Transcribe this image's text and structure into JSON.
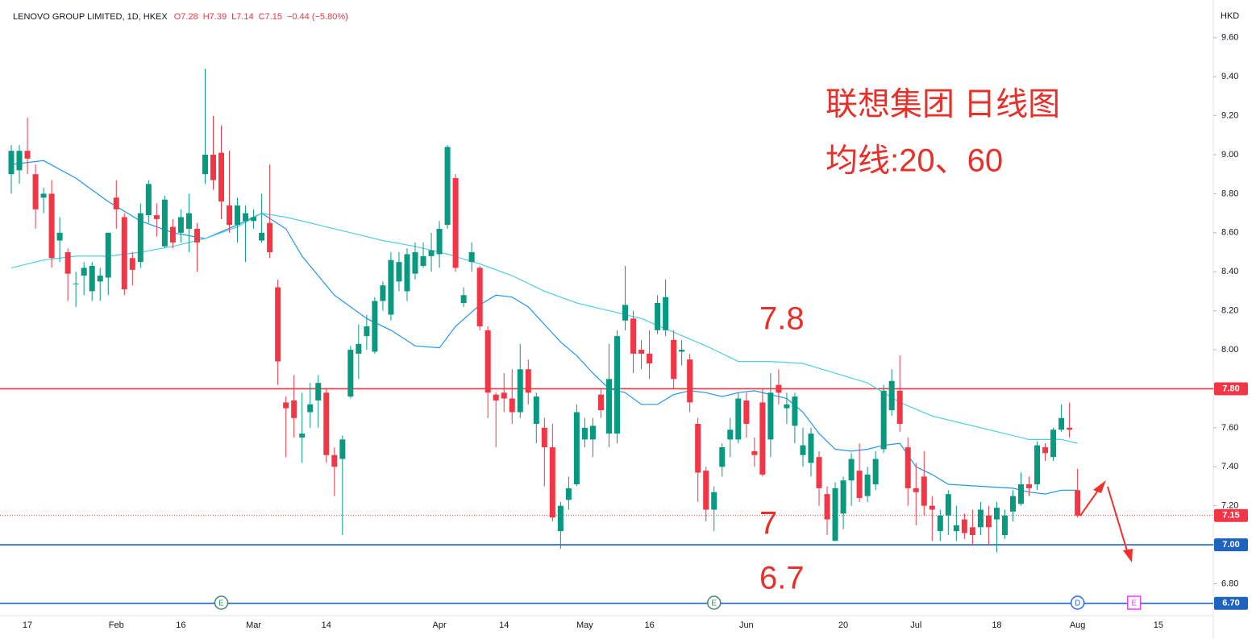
{
  "chart_data": {
    "type": "candlestick",
    "header": {
      "symbol": "LENOVO GROUP LIMITED, 1D, HKEX",
      "ohlc": [
        "O7.28",
        "H7.39",
        "L7.14",
        "C7.15",
        "−0.44 (−5.80%)"
      ]
    },
    "currency": "HKD",
    "title": "联想集团 日线图",
    "subtitle": "均线:20、60",
    "annotations": [
      "7.8",
      "7",
      "6.7"
    ],
    "up_color": "#089981",
    "down_color": "#f23645",
    "categories": [
      null,
      null,
      "17",
      null,
      null,
      null,
      null,
      null,
      null,
      null,
      null,
      null,
      null,
      "Feb",
      null,
      null,
      null,
      null,
      null,
      null,
      null,
      "16",
      null,
      null,
      null,
      null,
      null,
      null,
      null,
      null,
      "Mar",
      null,
      null,
      null,
      null,
      null,
      null,
      null,
      null,
      "14",
      null,
      null,
      null,
      null,
      null,
      null,
      null,
      null,
      null,
      null,
      null,
      null,
      null,
      "Apr",
      null,
      null,
      null,
      null,
      null,
      null,
      null,
      "14",
      null,
      null,
      null,
      null,
      null,
      null,
      null,
      null,
      null,
      "May",
      null,
      null,
      null,
      null,
      null,
      null,
      null,
      "16",
      null,
      null,
      null,
      null,
      null,
      null,
      null,
      null,
      null,
      null,
      null,
      "Jun",
      null,
      null,
      null,
      null,
      null,
      null,
      null,
      null,
      null,
      null,
      null,
      "20",
      null,
      null,
      null,
      null,
      null,
      null,
      null,
      null,
      "Jul",
      null,
      null,
      null,
      null,
      null,
      null,
      null,
      null,
      null,
      "18",
      null,
      null,
      null,
      null,
      null,
      null,
      null,
      null,
      null,
      "Aug",
      null,
      null,
      null,
      null,
      null,
      null,
      null,
      null,
      null,
      "15"
    ],
    "open": [
      8.9,
      8.92,
      9.02,
      8.9,
      8.78,
      8.8,
      8.56,
      8.5,
      8.34,
      8.38,
      8.3,
      8.35,
      8.37,
      8.78,
      8.68,
      8.47,
      8.45,
      8.69,
      8.69,
      8.53,
      8.63,
      8.6,
      8.62,
      8.62,
      8.9,
      9.0,
      9.01,
      8.74,
      8.64,
      8.66,
      8.66,
      8.56,
      8.65,
      8.32,
      7.73,
      7.74,
      7.55,
      7.68,
      7.74,
      7.78,
      7.46,
      7.44,
      7.76,
      7.98,
      8.07,
      7.99,
      8.25,
      8.18,
      8.35,
      8.3,
      8.39,
      8.43,
      8.48,
      8.49,
      8.64,
      8.88,
      8.24,
      8.45,
      8.42,
      8.1,
      7.77,
      7.78,
      7.75,
      7.68,
      7.9,
      7.62,
      7.6,
      7.5,
      7.07,
      7.23,
      7.31,
      7.54,
      7.54,
      7.77,
      7.57,
      7.57,
      8.15,
      8.16,
      8.0,
      7.98,
      8.1,
      8.1,
      8.05,
      7.99,
      7.95,
      7.62,
      7.38,
      7.18,
      7.4,
      7.54,
      7.54,
      7.74,
      7.48,
      7.73,
      7.54,
      7.82,
      7.7,
      7.61,
      7.46,
      7.42,
      7.45,
      7.26,
      7.02,
      7.16,
      7.33,
      7.38,
      7.25,
      7.31,
      7.49,
      7.69,
      7.79,
      7.5,
      7.29,
      7.35,
      7.2,
      7.07,
      7.15,
      7.07,
      7.13,
      7.09,
      7.09,
      7.15,
      7.13,
      7.05,
      7.17,
      7.21,
      7.31,
      7.31,
      7.5,
      7.45,
      7.59,
      7.6,
      7.28,
      null,
      null,
      null,
      null,
      null,
      null,
      null,
      null,
      null,
      null
    ],
    "high": [
      9.05,
      9.05,
      9.19,
      8.95,
      8.83,
      8.87,
      8.68,
      8.52,
      8.4,
      8.45,
      8.45,
      8.42,
      8.6,
      8.87,
      8.7,
      8.5,
      8.75,
      8.87,
      8.75,
      8.79,
      8.67,
      8.72,
      8.8,
      8.65,
      9.44,
      9.2,
      9.15,
      9.02,
      8.78,
      8.74,
      8.72,
      8.8,
      8.95,
      8.36,
      7.76,
      7.87,
      7.78,
      7.83,
      7.87,
      7.8,
      7.5,
      7.56,
      8.02,
      8.13,
      8.18,
      8.27,
      8.35,
      8.5,
      8.5,
      8.52,
      8.55,
      8.55,
      8.6,
      8.66,
      9.05,
      8.9,
      8.32,
      8.55,
      8.43,
      8.12,
      7.78,
      7.88,
      7.9,
      8.03,
      7.95,
      7.78,
      7.65,
      7.62,
      7.22,
      7.35,
      7.72,
      7.65,
      7.65,
      7.8,
      8.03,
      8.1,
      8.43,
      8.2,
      8.05,
      8.1,
      8.28,
      8.36,
      8.1,
      8.05,
      7.98,
      7.65,
      7.4,
      7.3,
      7.52,
      7.65,
      7.78,
      7.78,
      7.55,
      7.8,
      7.88,
      7.9,
      7.78,
      7.78,
      7.6,
      7.6,
      7.48,
      7.3,
      7.32,
      7.35,
      7.47,
      7.52,
      7.4,
      7.48,
      7.82,
      7.9,
      7.97,
      7.55,
      7.42,
      7.48,
      7.25,
      7.18,
      7.28,
      7.2,
      7.16,
      7.18,
      7.22,
      7.2,
      7.22,
      7.18,
      7.28,
      7.37,
      7.35,
      7.53,
      7.52,
      7.6,
      7.72,
      7.73,
      7.39,
      null,
      null,
      null,
      null,
      null,
      null,
      null,
      null,
      null,
      null
    ],
    "low": [
      8.8,
      8.85,
      8.9,
      8.62,
      8.7,
      8.42,
      8.45,
      8.25,
      8.22,
      8.28,
      8.25,
      8.25,
      8.28,
      8.62,
      8.28,
      8.33,
      8.42,
      8.65,
      8.58,
      8.52,
      8.52,
      8.55,
      8.5,
      8.4,
      8.85,
      8.82,
      8.67,
      8.6,
      8.55,
      8.45,
      8.62,
      8.55,
      8.47,
      7.82,
      7.45,
      7.55,
      7.42,
      7.6,
      7.6,
      7.42,
      7.25,
      7.05,
      7.75,
      7.85,
      8.0,
      7.98,
      8.2,
      8.15,
      8.3,
      8.25,
      8.36,
      8.42,
      8.4,
      8.42,
      8.62,
      8.4,
      8.22,
      8.4,
      8.1,
      7.65,
      7.5,
      7.68,
      7.62,
      7.65,
      7.72,
      7.52,
      7.3,
      7.12,
      6.98,
      7.18,
      7.3,
      7.5,
      7.45,
      7.65,
      7.5,
      7.52,
      8.1,
      7.88,
      7.9,
      7.85,
      8.08,
      8.07,
      7.8,
      7.92,
      7.68,
      7.22,
      7.12,
      7.07,
      7.35,
      7.45,
      7.52,
      7.55,
      7.4,
      7.35,
      7.45,
      7.72,
      7.62,
      7.52,
      7.4,
      7.35,
      7.2,
      7.05,
      7.02,
      7.08,
      7.2,
      7.22,
      7.22,
      7.28,
      7.47,
      7.66,
      7.58,
      7.2,
      7.1,
      7.15,
      7.02,
      7.02,
      7.05,
      7.02,
      7.03,
      7.0,
      7.05,
      7.0,
      6.96,
      7.03,
      7.12,
      7.2,
      7.25,
      7.28,
      7.43,
      7.43,
      7.58,
      7.55,
      7.14,
      null,
      null,
      null,
      null,
      null,
      null,
      null,
      null,
      null,
      null
    ],
    "close": [
      9.02,
      9.02,
      8.98,
      8.72,
      8.8,
      8.47,
      8.6,
      8.39,
      8.34,
      8.42,
      8.43,
      8.38,
      8.6,
      8.72,
      8.31,
      8.41,
      8.7,
      8.85,
      8.67,
      8.77,
      8.55,
      8.68,
      8.7,
      8.55,
      9.0,
      8.87,
      8.76,
      8.64,
      8.74,
      8.7,
      8.68,
      8.6,
      8.5,
      7.94,
      7.7,
      7.65,
      7.57,
      7.72,
      7.83,
      7.46,
      7.4,
      7.54,
      8.0,
      8.03,
      8.12,
      8.25,
      8.33,
      8.46,
      8.45,
      8.49,
      8.5,
      8.48,
      8.51,
      8.62,
      9.04,
      8.42,
      8.28,
      8.5,
      8.12,
      7.78,
      7.74,
      7.75,
      7.68,
      7.9,
      7.78,
      7.76,
      7.5,
      7.14,
      7.2,
      7.29,
      7.68,
      7.6,
      7.61,
      7.69,
      7.85,
      8.07,
      8.23,
      7.98,
      7.98,
      7.93,
      8.24,
      8.27,
      7.85,
      8.0,
      7.73,
      7.37,
      7.18,
      7.27,
      7.5,
      7.59,
      7.75,
      7.62,
      7.46,
      7.36,
      7.78,
      7.78,
      7.72,
      7.76,
      7.51,
      7.57,
      7.29,
      7.13,
      7.29,
      7.33,
      7.44,
      7.24,
      7.36,
      7.44,
      7.79,
      7.84,
      7.62,
      7.29,
      7.27,
      7.2,
      7.18,
      7.15,
      7.26,
      7.1,
      7.06,
      7.05,
      7.18,
      7.09,
      7.19,
      7.15,
      7.25,
      7.31,
      7.29,
      7.51,
      7.47,
      7.59,
      7.65,
      7.59,
      7.15,
      null,
      null,
      null,
      null,
      null,
      null,
      null,
      null,
      null,
      null
    ],
    "lines": [
      {
        "color": "#2196f3",
        "x": [
          0,
          4,
          8,
          12,
          16,
          20,
          24,
          28,
          31,
          34,
          36,
          40,
          44,
          47,
          50,
          53,
          55,
          58,
          60,
          62,
          64,
          66,
          68,
          70,
          72,
          74,
          76,
          78,
          80,
          82,
          84,
          86,
          88,
          90,
          92,
          94,
          96,
          98,
          100,
          102,
          104,
          106,
          108,
          110,
          112,
          114,
          116,
          120,
          124,
          126,
          128,
          130,
          132
        ],
        "values": [
          8.95,
          8.97,
          8.88,
          8.76,
          8.66,
          8.6,
          8.57,
          8.64,
          8.7,
          8.62,
          8.48,
          8.28,
          8.16,
          8.1,
          8.02,
          8.01,
          8.12,
          8.23,
          8.28,
          8.27,
          8.22,
          8.13,
          8.04,
          7.97,
          7.88,
          7.8,
          7.78,
          7.72,
          7.72,
          7.77,
          7.79,
          7.78,
          7.76,
          7.78,
          7.79,
          7.77,
          7.75,
          7.68,
          7.57,
          7.49,
          7.48,
          7.49,
          7.51,
          7.52,
          7.4,
          7.36,
          7.31,
          7.3,
          7.29,
          7.27,
          7.26,
          7.28,
          7.28
        ]
      },
      {
        "color": "#4dd0e1",
        "x": [
          0,
          4,
          8,
          12,
          16,
          20,
          24,
          28,
          31,
          34,
          38,
          42,
          46,
          50,
          54,
          58,
          62,
          66,
          70,
          74,
          78,
          82,
          86,
          90,
          94,
          98,
          102,
          106,
          110,
          114,
          118,
          122,
          126,
          130,
          132
        ],
        "values": [
          8.42,
          8.46,
          8.48,
          8.48,
          8.5,
          8.53,
          8.57,
          8.63,
          8.7,
          8.68,
          8.64,
          8.6,
          8.56,
          8.53,
          8.49,
          8.44,
          8.38,
          8.3,
          8.24,
          8.2,
          8.16,
          8.09,
          8.02,
          7.94,
          7.94,
          7.93,
          7.88,
          7.83,
          7.73,
          7.66,
          7.62,
          7.58,
          7.54,
          7.54,
          7.52
        ]
      }
    ],
    "levels": [
      {
        "value": 7.8,
        "label": "7.80",
        "color": "#f23645",
        "style": "solid"
      },
      {
        "value": 7.15,
        "label": "7.15",
        "color": "#f23645",
        "style": "dotted"
      },
      {
        "value": 7.0,
        "label": "7.00",
        "color": "#1e63c0",
        "style": "solid"
      },
      {
        "value": 6.7,
        "label": "6.70",
        "color": "#1e63c0",
        "style": "solid"
      }
    ],
    "events": [
      {
        "label": "E",
        "index": 26,
        "color": "#3d8a6c"
      },
      {
        "label": "E",
        "index": 87,
        "color": "#3d8a6c"
      },
      {
        "label": "D",
        "index": 132,
        "color": "#2962ff"
      },
      {
        "label": "E",
        "index": 139,
        "color": "#e040fb"
      }
    ],
    "ylim": [
      6.645,
      9.752
    ],
    "yticks": [
      {
        "value": 6.8,
        "label": "6.80"
      },
      {
        "value": 7.0,
        "label": "7.00"
      },
      {
        "value": 7.2,
        "label": "7.20"
      },
      {
        "value": 7.4,
        "label": "7.40"
      },
      {
        "value": 7.6,
        "label": "7.60"
      },
      {
        "value": 7.8,
        "label": "7.80"
      },
      {
        "value": 8.0,
        "label": "8.00"
      },
      {
        "value": 8.2,
        "label": "8.20"
      },
      {
        "value": 8.4,
        "label": "8.40"
      },
      {
        "value": 8.6,
        "label": "8.60"
      },
      {
        "value": 8.8,
        "label": "8.80"
      },
      {
        "value": 9.0,
        "label": "9.00"
      },
      {
        "value": 9.2,
        "label": "9.20"
      },
      {
        "value": 9.4,
        "label": "9.40"
      },
      {
        "value": 9.6,
        "label": "9.60"
      }
    ],
    "grid": false
  }
}
